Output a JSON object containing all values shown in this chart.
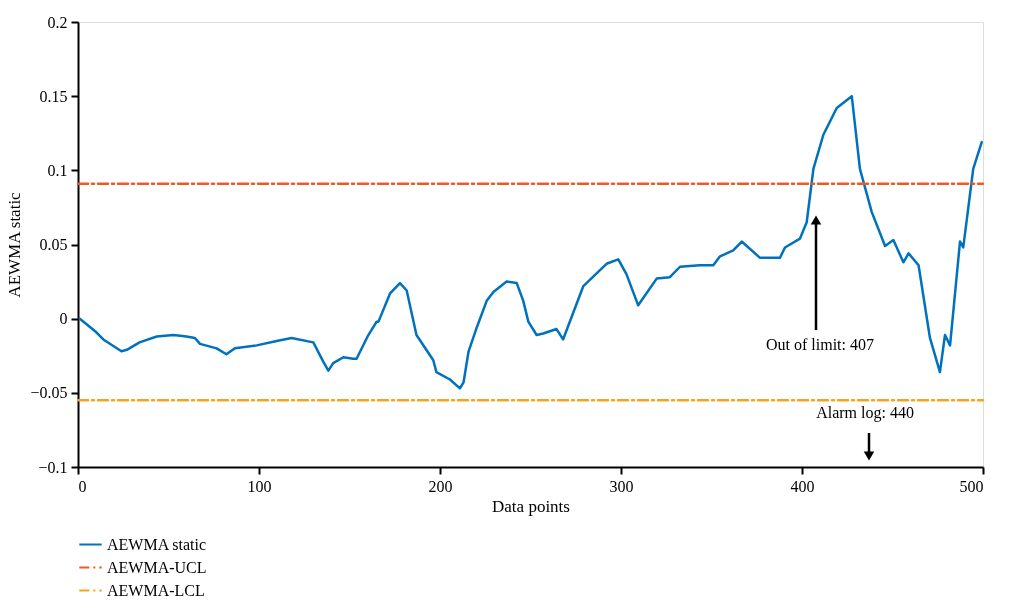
{
  "chart_data": {
    "type": "line",
    "xlabel": "Data points",
    "ylabel": "AEWMA static",
    "xlim": [
      0,
      500
    ],
    "ylim": [
      -0.1,
      0.2
    ],
    "xticks": [
      0,
      100,
      200,
      300,
      400,
      500
    ],
    "yticks": [
      -0.1,
      -0.05,
      0,
      0.05,
      0.1,
      0.15,
      0.2
    ],
    "grid": false,
    "legend": "bottom left",
    "marker": "none",
    "series": [
      {
        "name": "AEWMA static",
        "color": "#0072bd",
        "line_style": "solid",
        "x": [
          1,
          10,
          14,
          24,
          27,
          34,
          43.5,
          52.7,
          60,
          64.6,
          67.4,
          76.6,
          82,
          86.7,
          98.7,
          109.8,
          118,
          130,
          135.5,
          138.3,
          141,
          146.6,
          152,
          153.9,
          160,
          165,
          166,
          172.4,
          177.9,
          181.6,
          187,
          196.3,
          198,
          205.5,
          211,
          213,
          215.8,
          220,
          225.8,
          229.5,
          236.8,
          242.4,
          246,
          248.8,
          253.4,
          257,
          264.4,
          268,
          279.2,
          292,
          298.5,
          303,
          309.5,
          319.7,
          327,
          332.6,
          343.6,
          351,
          354.7,
          362,
          366.7,
          376.8,
          387.8,
          390.6,
          398.9,
          402.6,
          406.3,
          411.8,
          419.2,
          427.5,
          432,
          438.5,
          445.9,
          450.5,
          456,
          458.9,
          464.4,
          470.7,
          476.2,
          479,
          481.8,
          487.3,
          489.1,
          494.6,
          499.3
        ],
        "values": [
          0,
          -0.009,
          -0.014,
          -0.022,
          -0.021,
          -0.016,
          -0.012,
          -0.011,
          -0.012,
          -0.013,
          -0.017,
          -0.02,
          -0.024,
          -0.02,
          -0.018,
          -0.015,
          -0.013,
          -0.016,
          -0.029,
          -0.035,
          -0.03,
          -0.026,
          -0.027,
          -0.027,
          -0.012,
          -0.002,
          -0.002,
          0.017,
          0.024,
          0.019,
          -0.011,
          -0.028,
          -0.036,
          -0.041,
          -0.047,
          -0.043,
          -0.022,
          -0.007,
          0.012,
          0.018,
          0.025,
          0.024,
          0.012,
          -0.002,
          -0.011,
          -0.01,
          -0.007,
          -0.014,
          0.022,
          0.037,
          0.04,
          0.03,
          0.009,
          0.027,
          0.028,
          0.035,
          0.036,
          0.036,
          0.042,
          0.046,
          0.052,
          0.041,
          0.041,
          0.048,
          0.054,
          0.065,
          0.101,
          0.124,
          0.142,
          0.15,
          0.101,
          0.072,
          0.049,
          0.053,
          0.038,
          0.044,
          0.036,
          -0.013,
          -0.036,
          -0.011,
          -0.018,
          0.052,
          0.048,
          0.101,
          0.119
        ]
      },
      {
        "name": "AEWMA-UCL",
        "color": "#ee5a24",
        "line_style": "dashed",
        "x": [
          0,
          500
        ],
        "values": [
          0.091,
          0.091
        ]
      },
      {
        "name": "AEWMA-LCL",
        "color": "#f7a41d",
        "line_style": "dashed",
        "x": [
          0,
          500
        ],
        "values": [
          -0.055,
          -0.055
        ]
      }
    ],
    "annotations": [
      "Out of limit: 407",
      "Alarm log: 440"
    ]
  }
}
